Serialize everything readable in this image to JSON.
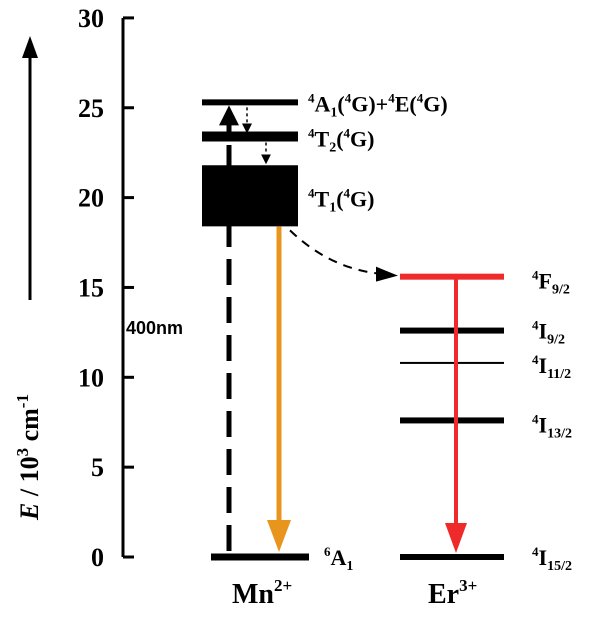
{
  "y_axis": {
    "title_italic": "E",
    "title_rest": " / 10",
    "title_exp1": "3",
    "title_unit": " cm",
    "title_exp2": "-1",
    "ticks": [
      "0",
      "5",
      "10",
      "15",
      "20",
      "25",
      "30"
    ]
  },
  "colors": {
    "level": "#000000",
    "emission_mn": "#E8951E",
    "emission_er": "#EE2A2A"
  },
  "mn": {
    "ion": "Mn",
    "charge": "2+",
    "excitation_label": "400nm",
    "states": [
      {
        "pre": "4",
        "main": "A",
        "sub": "1",
        "mid": "(",
        "pre2": "4",
        "tail": "G)+",
        "pre3": "4",
        "tail2": "E(",
        "pre4": "4",
        "tail3": "G)"
      },
      {
        "pre": "4",
        "main": "T",
        "sub": "2",
        "mid": "(",
        "pre2": "4",
        "tail": "G)"
      },
      {
        "pre": "4",
        "main": "T",
        "sub": "1",
        "mid": "(",
        "pre2": "4",
        "tail": "G)"
      },
      {
        "pre": "6",
        "main": "A",
        "sub": "1"
      }
    ]
  },
  "er": {
    "ion": "Er",
    "charge": "3+",
    "states": [
      {
        "pre": "4",
        "main": "F",
        "sub": "9/2"
      },
      {
        "pre": "4",
        "main": "I",
        "sub": "9/2"
      },
      {
        "pre": "4",
        "main": "I",
        "sub": "11/2"
      },
      {
        "pre": "4",
        "main": "I",
        "sub": "13/2"
      },
      {
        "pre": "4",
        "main": "I",
        "sub": "15/2"
      }
    ]
  },
  "levels_energy": {
    "mn_A1_E": 25.3,
    "mn_T2": 23.4,
    "mn_T1_top": 21.8,
    "mn_T1_bottom": 18.4,
    "mn_ground": 0,
    "er_F92": 15.6,
    "er_I92": 12.6,
    "er_I112": 10.8,
    "er_I132": 7.6,
    "er_I152": 0
  }
}
